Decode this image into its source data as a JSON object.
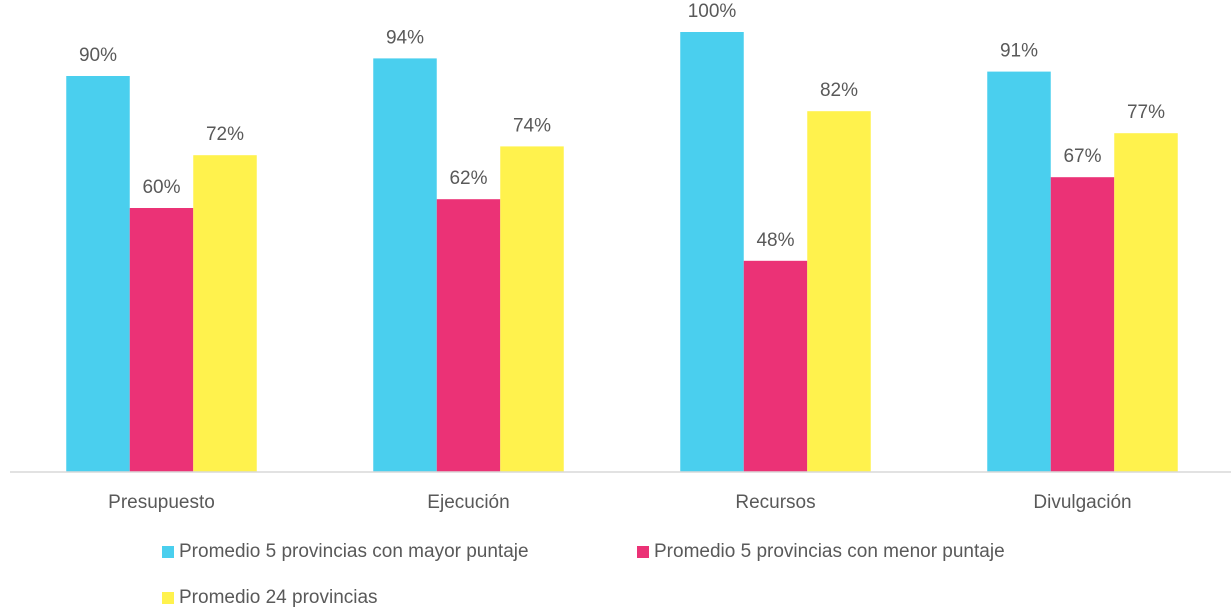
{
  "chart_data": {
    "type": "bar",
    "categories": [
      "Presupuesto",
      "Ejecución",
      "Recursos",
      "Divulgación"
    ],
    "series": [
      {
        "name": "Promedio 5 provincias con mayor puntaje",
        "color": "#4acfee",
        "values": [
          90,
          94,
          100,
          91
        ],
        "value_labels": [
          "90%",
          "94%",
          "100%",
          "91%"
        ]
      },
      {
        "name": "Promedio 5 provincias con menor puntaje",
        "color": "#eb3276",
        "values": [
          60,
          62,
          48,
          67
        ],
        "value_labels": [
          "60%",
          "62%",
          "48%",
          "67%"
        ]
      },
      {
        "name": "Promedio 24 provincias",
        "color": "#fff24d",
        "values": [
          72,
          74,
          82,
          77
        ],
        "value_labels": [
          "72%",
          "74%",
          "82%",
          "77%"
        ]
      }
    ],
    "ylim": [
      0,
      100
    ],
    "legend": "bottom"
  }
}
